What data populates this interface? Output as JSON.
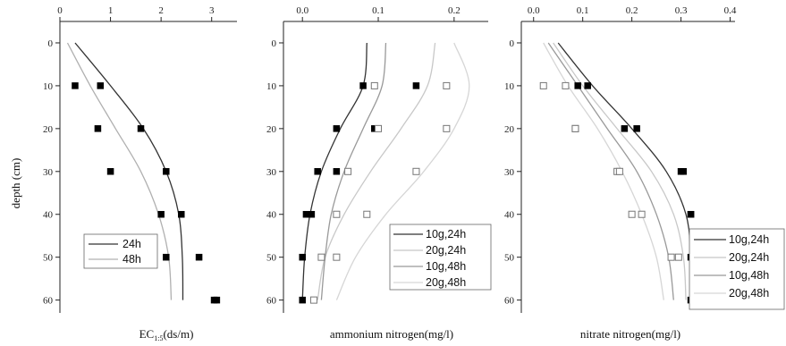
{
  "y_axis": {
    "label": "depth (cm)",
    "ticks": [
      "0",
      "10",
      "20",
      "30",
      "40",
      "50",
      "60"
    ]
  },
  "chart_data": [
    {
      "type": "scatter",
      "x_label_main": "EC",
      "x_label_sub": "1:5",
      "x_label_unit": "(ds/m)",
      "xlim": [
        0,
        3.5
      ],
      "ylim": [
        -5,
        63
      ],
      "x_ticks": [
        "0",
        "1",
        "2",
        "3"
      ],
      "legend": [
        "24h",
        "48h"
      ],
      "series": [
        {
          "name": "24h",
          "marker": "filled",
          "line_color": "#333333",
          "points": [
            [
              0.8,
              10
            ],
            [
              1.6,
              20
            ],
            [
              2.1,
              30
            ],
            [
              2.4,
              40
            ],
            [
              2.75,
              50
            ],
            [
              3.1,
              60
            ]
          ],
          "curve": [
            [
              0.3,
              0
            ],
            [
              1.0,
              10
            ],
            [
              1.65,
              20
            ],
            [
              2.1,
              30
            ],
            [
              2.35,
              40
            ],
            [
              2.42,
              50
            ],
            [
              2.43,
              60
            ]
          ]
        },
        {
          "name": "48h",
          "marker": "filled",
          "line_color": "#b0b0b0",
          "points": [
            [
              0.3,
              10
            ],
            [
              0.75,
              20
            ],
            [
              1.0,
              30
            ],
            [
              2.0,
              40
            ],
            [
              2.1,
              50
            ],
            [
              3.05,
              60
            ]
          ],
          "curve": [
            [
              0.15,
              0
            ],
            [
              0.6,
              10
            ],
            [
              1.1,
              20
            ],
            [
              1.6,
              30
            ],
            [
              1.95,
              40
            ],
            [
              2.15,
              50
            ],
            [
              2.2,
              60
            ]
          ]
        }
      ]
    },
    {
      "type": "scatter",
      "x_label_main": "ammonium nitrogen(mg/l)",
      "xlim": [
        -0.025,
        0.245
      ],
      "ylim": [
        -5,
        63
      ],
      "x_ticks": [
        "0.0",
        "0.1",
        "0.2"
      ],
      "legend": [
        "10g,24h",
        "20g,24h",
        "10g,48h",
        "20g,48h"
      ],
      "series": [
        {
          "name": "10g,24h",
          "marker": "filled",
          "line_color": "#333333",
          "points": [
            [
              0.08,
              10
            ],
            [
              0.045,
              20
            ],
            [
              0.02,
              30
            ],
            [
              0.005,
              40
            ],
            [
              0.0,
              50
            ],
            [
              0.0,
              60
            ]
          ],
          "curve": [
            [
              0.085,
              0
            ],
            [
              0.08,
              10
            ],
            [
              0.05,
              20
            ],
            [
              0.025,
              30
            ],
            [
              0.01,
              40
            ],
            [
              0.003,
              50
            ],
            [
              0.0,
              60
            ]
          ]
        },
        {
          "name": "20g,24h",
          "marker": "filled",
          "line_color": "#c8c8c8",
          "points": [
            [
              0.15,
              10
            ],
            [
              0.095,
              20
            ],
            [
              0.045,
              30
            ],
            [
              0.012,
              40
            ]
          ],
          "curve": [
            [
              0.175,
              0
            ],
            [
              0.165,
              10
            ],
            [
              0.13,
              20
            ],
            [
              0.09,
              30
            ],
            [
              0.055,
              40
            ],
            [
              0.03,
              50
            ],
            [
              0.02,
              60
            ]
          ]
        },
        {
          "name": "10g,48h",
          "marker": "open",
          "line_color": "#999999",
          "points": [
            [
              0.095,
              10
            ],
            [
              0.1,
              20
            ],
            [
              0.06,
              30
            ],
            [
              0.045,
              40
            ],
            [
              0.045,
              50
            ]
          ],
          "curve": [
            [
              0.11,
              0
            ],
            [
              0.105,
              10
            ],
            [
              0.08,
              20
            ],
            [
              0.055,
              30
            ],
            [
              0.038,
              40
            ],
            [
              0.03,
              50
            ],
            [
              0.025,
              60
            ]
          ]
        },
        {
          "name": "20g,48h",
          "marker": "open",
          "line_color": "#d6d6d6",
          "points": [
            [
              0.19,
              10
            ],
            [
              0.19,
              20
            ],
            [
              0.15,
              30
            ],
            [
              0.085,
              40
            ],
            [
              0.025,
              50
            ],
            [
              0.015,
              60
            ]
          ],
          "curve": [
            [
              0.2,
              0
            ],
            [
              0.22,
              10
            ],
            [
              0.2,
              20
            ],
            [
              0.16,
              30
            ],
            [
              0.11,
              40
            ],
            [
              0.07,
              50
            ],
            [
              0.045,
              60
            ]
          ]
        }
      ]
    },
    {
      "type": "scatter",
      "x_label_main": "nitrate nitrogen(mg/l)",
      "xlim": [
        -0.025,
        0.41
      ],
      "ylim": [
        -5,
        63
      ],
      "x_ticks": [
        "0.0",
        "0.1",
        "0.2",
        "0.3",
        "0.4"
      ],
      "legend": [
        "10g,24h",
        "20g,24h",
        "10g,48h",
        "20g,48h"
      ],
      "series": [
        {
          "name": "10g,24h",
          "marker": "filled",
          "line_color": "#333333",
          "points": [
            [
              0.11,
              10
            ],
            [
              0.21,
              20
            ],
            [
              0.305,
              30
            ],
            [
              0.32,
              40
            ],
            [
              0.32,
              50
            ],
            [
              0.38,
              60
            ]
          ],
          "curve": [
            [
              0.05,
              0
            ],
            [
              0.12,
              10
            ],
            [
              0.2,
              20
            ],
            [
              0.27,
              30
            ],
            [
              0.31,
              40
            ],
            [
              0.32,
              50
            ],
            [
              0.32,
              60
            ]
          ]
        },
        {
          "name": "20g,24h",
          "marker": "filled",
          "line_color": "#c8c8c8",
          "points": [
            [
              0.09,
              10
            ],
            [
              0.185,
              20
            ],
            [
              0.3,
              30
            ],
            [
              0.32,
              40
            ],
            [
              0.32,
              60
            ]
          ],
          "curve": [
            [
              0.04,
              0
            ],
            [
              0.1,
              10
            ],
            [
              0.17,
              20
            ],
            [
              0.24,
              30
            ],
            [
              0.285,
              40
            ],
            [
              0.305,
              50
            ],
            [
              0.31,
              60
            ]
          ]
        },
        {
          "name": "10g,48h",
          "marker": "open",
          "line_color": "#999999",
          "points": [
            [
              0.065,
              10
            ],
            [
              0.085,
              20
            ],
            [
              0.17,
              30
            ],
            [
              0.2,
              40
            ],
            [
              0.295,
              50
            ],
            [
              0.35,
              60
            ]
          ],
          "curve": [
            [
              0.03,
              0
            ],
            [
              0.09,
              10
            ],
            [
              0.15,
              20
            ],
            [
              0.21,
              30
            ],
            [
              0.25,
              40
            ],
            [
              0.275,
              50
            ],
            [
              0.285,
              60
            ]
          ]
        },
        {
          "name": "20g,48h",
          "marker": "open",
          "line_color": "#d6d6d6",
          "points": [
            [
              0.02,
              10
            ],
            [
              0.085,
              20
            ],
            [
              0.175,
              30
            ],
            [
              0.22,
              40
            ],
            [
              0.28,
              50
            ]
          ],
          "curve": [
            [
              0.02,
              0
            ],
            [
              0.07,
              10
            ],
            [
              0.13,
              20
            ],
            [
              0.18,
              30
            ],
            [
              0.22,
              40
            ],
            [
              0.25,
              50
            ],
            [
              0.265,
              60
            ]
          ]
        }
      ]
    }
  ]
}
